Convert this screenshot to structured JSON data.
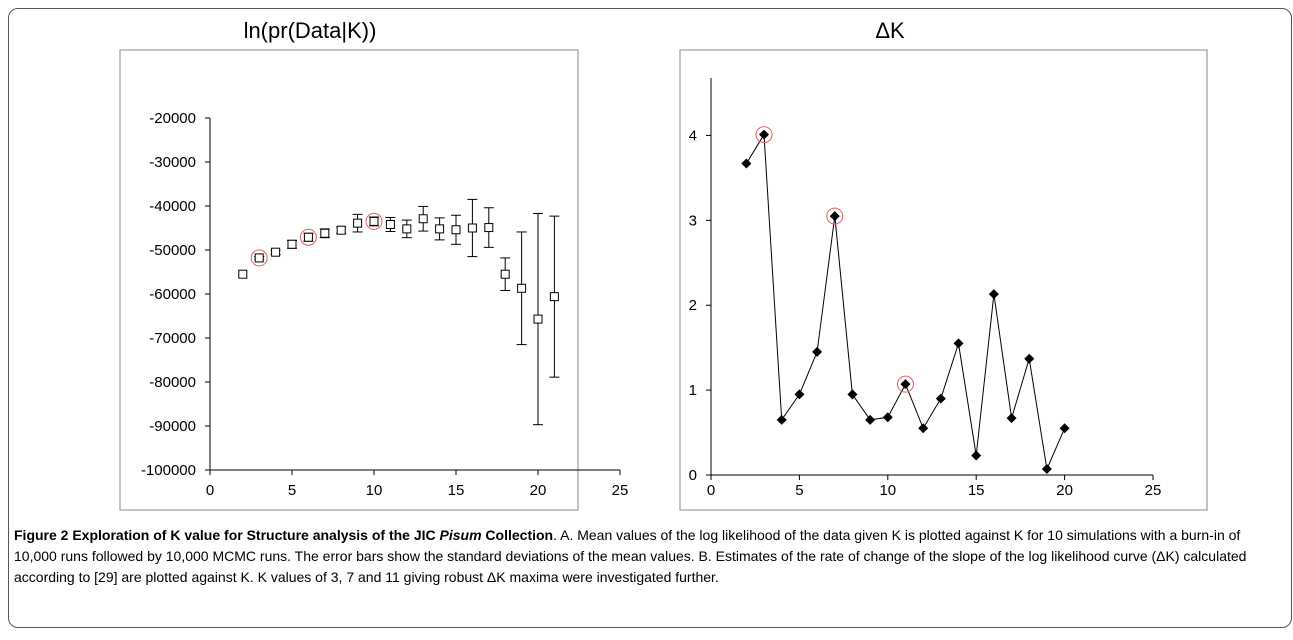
{
  "chart_data": [
    {
      "type": "scatter",
      "title": "ln(pr(Data|K))",
      "xlabel": "",
      "ylabel": "",
      "xlim": [
        0,
        25
      ],
      "ylim": [
        -100000,
        -20000
      ],
      "xticks": [
        "0",
        "5",
        "10",
        "15",
        "20",
        "25"
      ],
      "yticks": [
        "-20000",
        "-30000",
        "-40000",
        "-50000",
        "-60000",
        "-70000",
        "-80000",
        "-90000",
        "-100000"
      ],
      "grid": false,
      "marker": "open-square",
      "error_bars": "standard deviation",
      "points": [
        {
          "k": 2,
          "mean": -55500,
          "sd": 0
        },
        {
          "k": 3,
          "mean": -51800,
          "sd": 300
        },
        {
          "k": 4,
          "mean": -50500,
          "sd": 500
        },
        {
          "k": 5,
          "mean": -48700,
          "sd": 900
        },
        {
          "k": 6,
          "mean": -47100,
          "sd": 900
        },
        {
          "k": 7,
          "mean": -46200,
          "sd": 1000
        },
        {
          "k": 8,
          "mean": -45500,
          "sd": 700
        },
        {
          "k": 9,
          "mean": -43900,
          "sd": 2000
        },
        {
          "k": 10,
          "mean": -43500,
          "sd": 1000
        },
        {
          "k": 11,
          "mean": -44200,
          "sd": 1600
        },
        {
          "k": 12,
          "mean": -45200,
          "sd": 2000
        },
        {
          "k": 13,
          "mean": -42900,
          "sd": 2800
        },
        {
          "k": 14,
          "mean": -45200,
          "sd": 2500
        },
        {
          "k": 15,
          "mean": -45400,
          "sd": 3300
        },
        {
          "k": 16,
          "mean": -45000,
          "sd": 6500
        },
        {
          "k": 17,
          "mean": -44900,
          "sd": 4500
        },
        {
          "k": 18,
          "mean": -55500,
          "sd": 3700
        },
        {
          "k": 19,
          "mean": -58700,
          "sd": 12800
        },
        {
          "k": 20,
          "mean": -65700,
          "sd": 24000
        },
        {
          "k": 21,
          "mean": -60600,
          "sd": 18300
        }
      ],
      "highlighted_k": [
        3,
        6,
        10
      ],
      "highlight_color": "#e06060"
    },
    {
      "type": "line",
      "title": "ΔK",
      "xlabel": "",
      "ylabel": "",
      "xlim": [
        0,
        25
      ],
      "ylim": [
        0,
        4.5
      ],
      "xticks": [
        "0",
        "5",
        "10",
        "15",
        "20",
        "25"
      ],
      "yticks": [
        "0",
        "1",
        "2",
        "3",
        "4"
      ],
      "grid": false,
      "marker": "filled-diamond",
      "x": [
        2,
        3,
        4,
        5,
        6,
        7,
        8,
        9,
        10,
        11,
        12,
        13,
        14,
        15,
        16,
        17,
        18,
        19,
        20
      ],
      "y": [
        3.67,
        4.01,
        0.65,
        0.95,
        1.45,
        3.05,
        0.95,
        0.65,
        0.68,
        1.07,
        0.55,
        0.9,
        1.55,
        0.23,
        2.13,
        0.67,
        1.37,
        0.07,
        0.55
      ],
      "highlighted_k": [
        3,
        7,
        11
      ],
      "highlight_color": "#e06060"
    }
  ],
  "caption": {
    "bold": "Figure 2 Exploration of K value for Structure analysis of the JIC ",
    "bold_italic": "Pisum",
    "bold_end": " Collection",
    "text": ". A. Mean values of the log likelihood of the data given K is plotted against K for 10 simulations with a burn-in of 10,000 runs followed by 10,000 MCMC runs. The error bars show the standard deviations of the mean values. B. Estimates of the rate of change of the slope of the log likelihood curve (ΔK) calculated according to [29] are plotted against K. K values of 3, 7 and 11 giving robust ΔK maxima were investigated further."
  }
}
